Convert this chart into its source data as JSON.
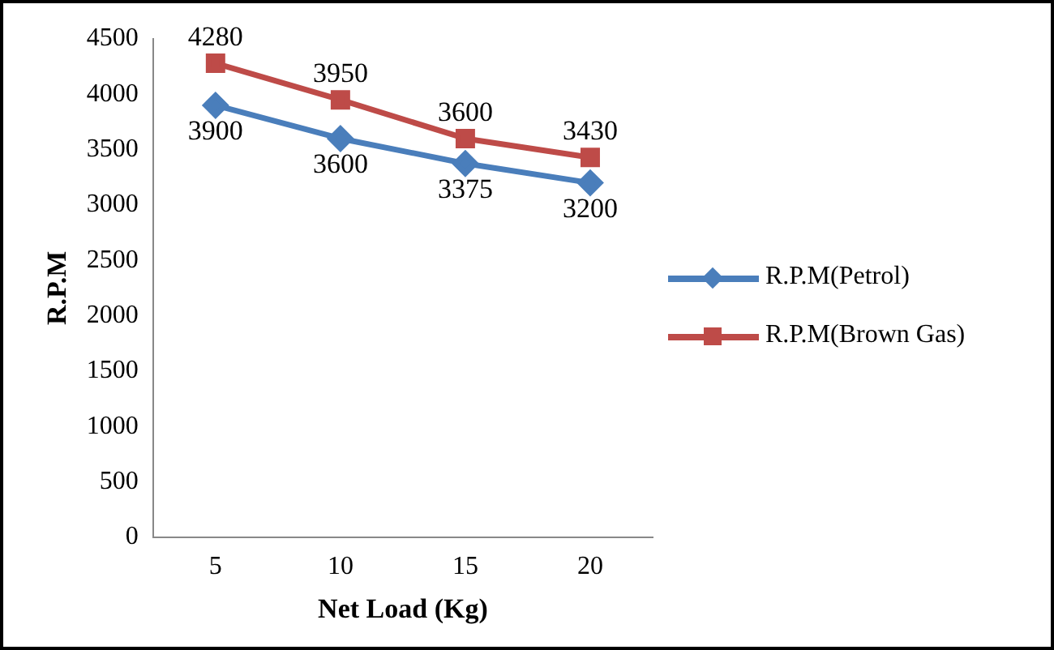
{
  "chart_data": {
    "type": "line",
    "xlabel": "Net Load (Kg)",
    "ylabel": "R.P.M",
    "categories": [
      "5",
      "10",
      "15",
      "20"
    ],
    "series": [
      {
        "name": "R.P.M(Petrol)",
        "color": "#4a7ebb",
        "values": [
          3900,
          3600,
          3375,
          3200
        ],
        "marker": "diamond"
      },
      {
        "name": "R.P.M(Brown Gas)",
        "color": "#be4b48",
        "values": [
          4280,
          3950,
          3600,
          3430
        ],
        "marker": "square"
      }
    ],
    "ylim": [
      0,
      4500
    ],
    "yticks": [
      0,
      500,
      1000,
      1500,
      2000,
      2500,
      3000,
      3500,
      4000,
      4500
    ],
    "grid": false,
    "legend": "right",
    "data_labels": true,
    "line_style": "solid"
  }
}
